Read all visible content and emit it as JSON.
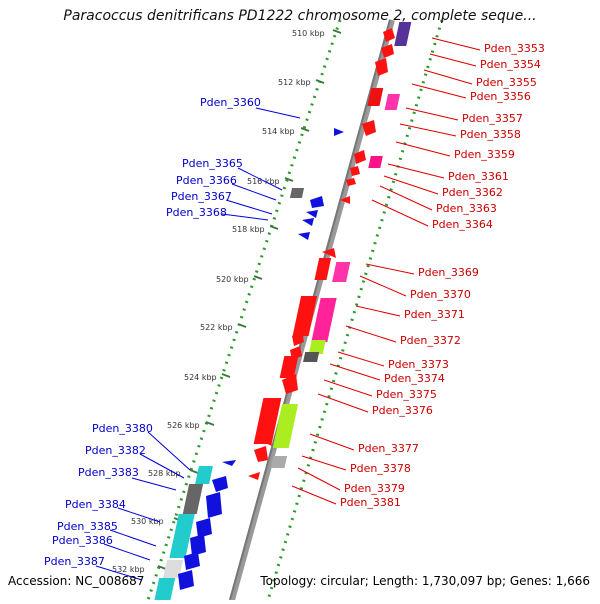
{
  "header": {
    "title": "Paracoccus denitrificans PD1222 chromosome 2, complete seque..."
  },
  "footer": {
    "accession": "Accession: NC_008687",
    "summary": "Topology: circular; Length: 1,730,097 bp; Genes: 1,666"
  },
  "colors": {
    "forward_label": "#cc0000",
    "reverse_label": "#0000cc",
    "backbone": "#888888",
    "tick": "#1a8a1a",
    "kbp_tick": "#3a7a3a"
  },
  "kbp_labels": [
    "510 kbp",
    "512 kbp",
    "514 kbp",
    "516 kbp",
    "518 kbp",
    "520 kbp",
    "522 kbp",
    "524 kbp",
    "526 kbp",
    "528 kbp",
    "530 kbp",
    "532 kbp"
  ],
  "forward_labels": [
    "Pden_3353",
    "Pden_3354",
    "Pden_3355",
    "Pden_3356",
    "Pden_3357",
    "Pden_3358",
    "Pden_3359",
    "Pden_3361",
    "Pden_3362",
    "Pden_3363",
    "Pden_3364",
    "Pden_3369",
    "Pden_3370",
    "Pden_3371",
    "Pden_3372",
    "Pden_3373",
    "Pden_3374",
    "Pden_3375",
    "Pden_3376",
    "Pden_3377",
    "Pden_3378",
    "Pden_3379",
    "Pden_3381"
  ],
  "reverse_labels": [
    "Pden_3360",
    "Pden_3365",
    "Pden_3366",
    "Pden_3367",
    "Pden_3368",
    "Pden_3380",
    "Pden_3382",
    "Pden_3383",
    "Pden_3384",
    "Pden_3385",
    "Pden_3386",
    "Pden_3387"
  ]
}
